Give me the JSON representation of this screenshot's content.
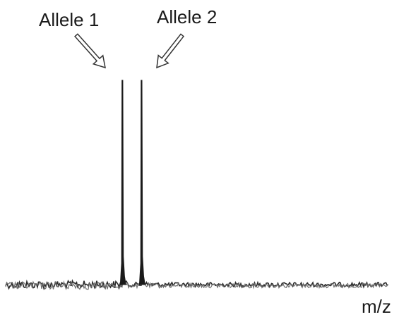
{
  "chart_data": {
    "type": "line",
    "title": "",
    "xlabel": "m/z",
    "ylabel": "",
    "grid": false,
    "legend": "none",
    "xlim": [
      0,
      100
    ],
    "ylim": [
      0,
      100
    ],
    "annotations": [
      {
        "text": "Allele 1",
        "target_x": 30.5
      },
      {
        "text": "Allele 2",
        "target_x": 35.5
      }
    ],
    "peaks": [
      {
        "name": "Allele 1",
        "x": 30.5,
        "height": 100
      },
      {
        "name": "Allele 2",
        "x": 35.5,
        "height": 100
      }
    ],
    "series": [
      {
        "color": "#2b2b2b"
      },
      {
        "color": "#6e6e6e"
      }
    ]
  }
}
